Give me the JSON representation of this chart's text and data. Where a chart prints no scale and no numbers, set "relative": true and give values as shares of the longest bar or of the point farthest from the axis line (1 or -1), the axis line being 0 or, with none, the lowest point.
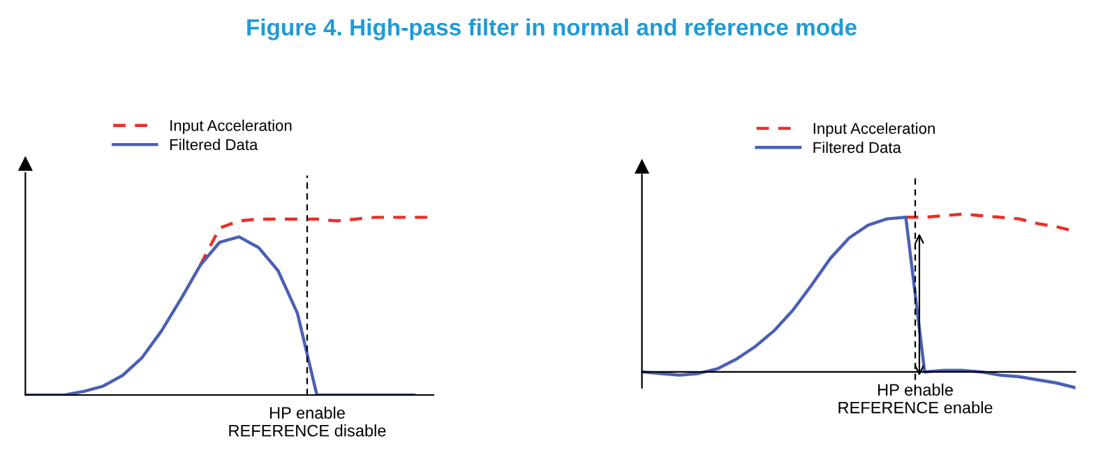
{
  "chart_data": [
    {
      "type": "line",
      "title": "Figure 4. High-pass filter in normal and reference mode",
      "relative": true,
      "legend": "top",
      "categories": [
        null,
        null,
        null,
        null,
        null,
        null,
        null,
        null,
        null,
        null,
        null,
        null,
        null,
        null,
        null,
        null,
        null,
        null,
        null,
        null,
        null,
        null
      ],
      "series": [
        {
          "name": "Input Acceleration",
          "color": "#e8302a",
          "line_style": "dashed",
          "values": [
            null,
            null,
            null,
            null,
            null,
            null,
            null,
            null,
            null,
            0.73,
            0.94,
            0.98,
            0.99,
            0.99,
            0.99,
            0.99,
            0.98,
            0.99,
            1,
            1,
            1,
            1
          ]
        },
        {
          "name": "Filtered Data",
          "color": "#4a5fb5",
          "line_style": "solid",
          "values": [
            0,
            0,
            0,
            0.02,
            0.05,
            0.11,
            0.21,
            0.36,
            0.54,
            0.73,
            0.86,
            0.89,
            0.83,
            0.7,
            0.46,
            0,
            0,
            0,
            0,
            0,
            0,
            null
          ]
        }
      ],
      "annotations": [
        "HP enable\nREFERENCE disable"
      ]
    },
    {
      "type": "line",
      "relative": true,
      "legend": "top",
      "categories": [
        null,
        null,
        null,
        null,
        null,
        null,
        null,
        null,
        null,
        null,
        null,
        null,
        null,
        null,
        null,
        null,
        null,
        null,
        null,
        null,
        null,
        null,
        null,
        null
      ],
      "series": [
        {
          "name": "Input Acceleration",
          "color": "#e8302a",
          "line_style": "dashed",
          "values": [
            null,
            null,
            null,
            null,
            null,
            null,
            null,
            null,
            null,
            null,
            null,
            null,
            null,
            null,
            0.98,
            0.98,
            0.99,
            1,
            0.99,
            0.98,
            0.97,
            0.94,
            0.92,
            0.89
          ]
        },
        {
          "name": "Filtered Data",
          "color": "#4a5fb5",
          "line_style": "solid",
          "values": [
            0,
            -0.01,
            -0.02,
            -0.01,
            0.02,
            0.08,
            0.16,
            0.26,
            0.39,
            0.55,
            0.72,
            0.85,
            0.93,
            0.97,
            0.98,
            0,
            0.01,
            0.01,
            0,
            -0.02,
            -0.03,
            -0.05,
            -0.07,
            -0.1
          ]
        }
      ],
      "annotations": [
        "HP enable\nREFERENCE enable"
      ]
    }
  ]
}
